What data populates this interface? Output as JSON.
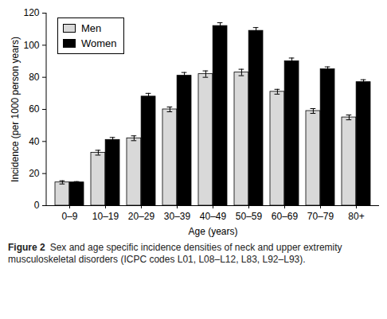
{
  "chart_data": {
    "type": "bar",
    "x_label": "Age (years)",
    "y_label": "Incidence (per 1000 person years)",
    "caption_label": "Figure 2",
    "caption": "Sex and age specific incidence densities of neck and upper extremity musculoskeletal disorders (ICPC codes L01, L08–L12, L83, L92–L93).",
    "categories": [
      "0–9",
      "10–19",
      "20–29",
      "30–39",
      "40–49",
      "50–59",
      "60–69",
      "70–79",
      "80+"
    ],
    "series": [
      {
        "name": "Men",
        "color": "#d9d9d9",
        "values": [
          14.5,
          33,
          42,
          60,
          82,
          83,
          71,
          59,
          55
        ],
        "errors": [
          1,
          1.5,
          1.5,
          1.5,
          2,
          2,
          1.5,
          1.5,
          1.5
        ]
      },
      {
        "name": "Women",
        "color": "#000000",
        "values": [
          14.5,
          41,
          68,
          81,
          112,
          109,
          90,
          85,
          77
        ],
        "errors": [
          0.5,
          1.5,
          2,
          2,
          2,
          2,
          2,
          1.5,
          1.5
        ]
      }
    ],
    "ylim": [
      0,
      120
    ],
    "yticks": [
      0,
      20,
      40,
      60,
      80,
      100,
      120
    ],
    "grid": false,
    "legend": "upper left"
  }
}
